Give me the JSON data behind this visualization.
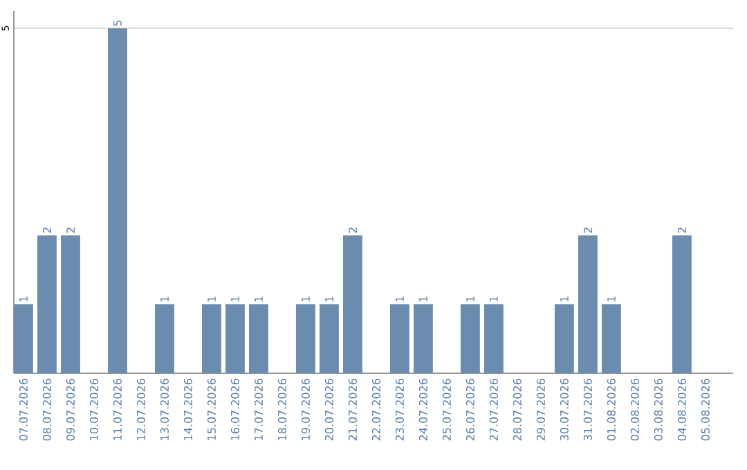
{
  "chart_data": {
    "type": "bar",
    "categories": [
      "07.07.2026",
      "08.07.2026",
      "09.07.2026",
      "10.07.2026",
      "11.07.2026",
      "12.07.2026",
      "13.07.2026",
      "14.07.2026",
      "15.07.2026",
      "16.07.2026",
      "17.07.2026",
      "18.07.2026",
      "19.07.2026",
      "20.07.2026",
      "21.07.2026",
      "22.07.2026",
      "23.07.2026",
      "24.07.2026",
      "25.07.2026",
      "26.07.2026",
      "27.07.2026",
      "28.07.2026",
      "29.07.2026",
      "30.07.2026",
      "31.07.2026",
      "01.08.2026",
      "02.08.2026",
      "03.08.2026",
      "04.08.2026",
      "05.08.2026"
    ],
    "values": [
      1,
      2,
      2,
      null,
      5,
      null,
      1,
      null,
      1,
      1,
      1,
      null,
      1,
      1,
      2,
      null,
      1,
      1,
      null,
      1,
      1,
      null,
      null,
      1,
      2,
      1,
      null,
      null,
      2,
      null
    ],
    "color": "#6a8caf",
    "ylim": [
      0,
      5.25
    ],
    "yticks": [
      5
    ],
    "grid": "y",
    "data_labels": true
  }
}
